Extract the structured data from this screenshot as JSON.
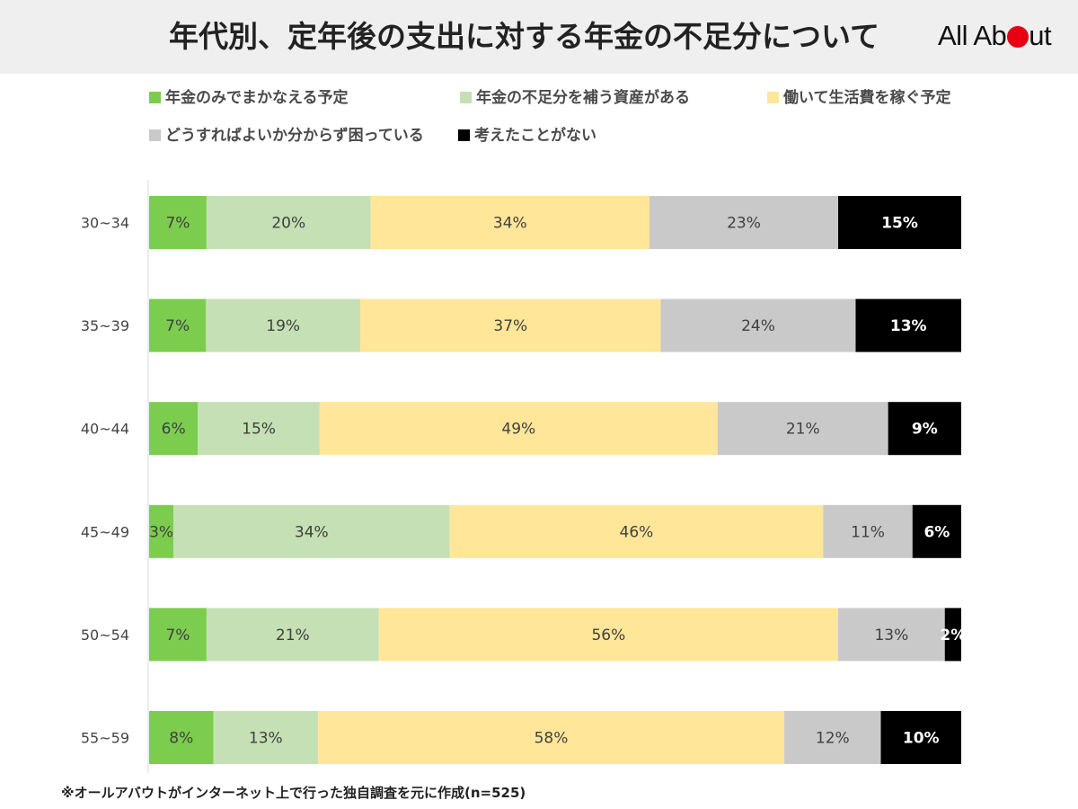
{
  "title": "年代別、定年後の支出に対する年金の不足分について",
  "logo": {
    "text_before": "All Ab",
    "text_after": "ut"
  },
  "footnote": "※オールアバウトがインターネット上で行った独自調査を元に作成(n=525)",
  "colors": {
    "header_bg": "#efefef",
    "logo_dot": "#e60012",
    "axis": "#d9d9d9",
    "label_dark": "#404040",
    "label_light": "#ffffff"
  },
  "chart_data": {
    "type": "bar",
    "orientation": "horizontal",
    "stacked": true,
    "normalized_percent": true,
    "categories": [
      "30~34",
      "35~39",
      "40~44",
      "45~49",
      "50~54",
      "55~59"
    ],
    "series": [
      {
        "name": "年金のみでまかなえる予定",
        "color": "#7ccd4e",
        "values": [
          7,
          7,
          6,
          3,
          7,
          8
        ]
      },
      {
        "name": "年金の不足分を補う資産がある",
        "color": "#c5e0b4",
        "values": [
          20,
          19,
          15,
          34,
          21,
          13
        ]
      },
      {
        "name": "働いて生活費を稼ぐ予定",
        "color": "#ffe699",
        "values": [
          34,
          37,
          49,
          46,
          56,
          58
        ]
      },
      {
        "name": "どうすればよいか分からず困っている",
        "color": "#c9c9c9",
        "values": [
          23,
          24,
          21,
          11,
          13,
          12
        ]
      },
      {
        "name": "考えたことがない",
        "color": "#000000",
        "values": [
          15,
          13,
          9,
          6,
          2,
          10
        ]
      }
    ],
    "value_suffix": "%",
    "data_labels": true,
    "legend_position": "top",
    "grid": false
  }
}
